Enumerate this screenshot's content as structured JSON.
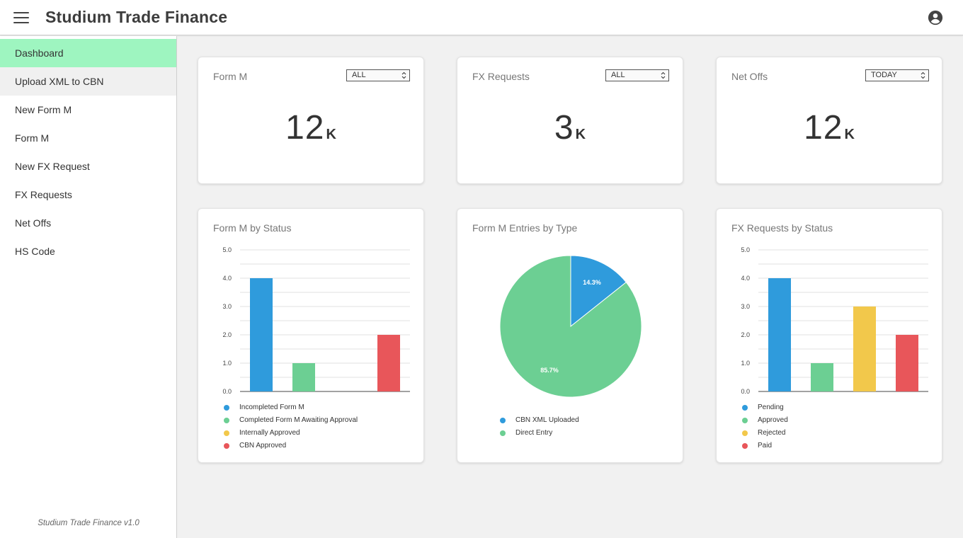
{
  "header": {
    "title": "Studium Trade Finance",
    "menu_icon": "hamburger-menu-icon",
    "account_icon": "account-circle-icon"
  },
  "sidebar": {
    "items": [
      {
        "label": "Dashboard",
        "state": "active"
      },
      {
        "label": "Upload XML to CBN",
        "state": "hover"
      },
      {
        "label": "New Form M",
        "state": ""
      },
      {
        "label": "Form M",
        "state": ""
      },
      {
        "label": "New FX Request",
        "state": ""
      },
      {
        "label": "FX Requests",
        "state": ""
      },
      {
        "label": "Net Offs",
        "state": ""
      },
      {
        "label": "HS Code",
        "state": ""
      }
    ],
    "version": "Studium Trade Finance v1.0"
  },
  "stats": [
    {
      "title": "Form M",
      "filter": "ALL",
      "value": "12",
      "unit": "K"
    },
    {
      "title": "FX Requests",
      "filter": "ALL",
      "value": "3",
      "unit": "K"
    },
    {
      "title": "Net Offs",
      "filter": "TODAY",
      "value": "12",
      "unit": "K"
    }
  ],
  "colors": {
    "blue": "#2f9bdc",
    "green": "#6ccf93",
    "yellow": "#f2c84b",
    "red": "#e8565a",
    "active_nav": "#9ef5c0"
  },
  "chart_data": [
    {
      "type": "bar",
      "title": "Form M by Status",
      "categories": [
        "Incompleted Form M",
        "Completed Form M Awaiting Approval",
        "Internally Approved",
        "CBN Approved"
      ],
      "values": [
        4,
        1,
        0,
        2
      ],
      "colors": [
        "#2f9bdc",
        "#6ccf93",
        "#f2c84b",
        "#e8565a"
      ],
      "ylim": [
        0,
        5
      ],
      "yticks": [
        "0.0",
        "1.0",
        "2.0",
        "3.0",
        "4.0",
        "5.0"
      ],
      "grid": true,
      "legend": "bottom"
    },
    {
      "type": "pie",
      "title": "Form M Entries by Type",
      "categories": [
        "CBN XML Uploaded",
        "Direct Entry"
      ],
      "values": [
        14.3,
        85.7
      ],
      "labels": [
        "14.3%",
        "85.7%"
      ],
      "colors": [
        "#2f9bdc",
        "#6ccf93"
      ],
      "legend": "bottom"
    },
    {
      "type": "bar",
      "title": "FX Requests by Status",
      "categories": [
        "Pending",
        "Approved",
        "Rejected",
        "Paid"
      ],
      "values": [
        4,
        1,
        3,
        2
      ],
      "colors": [
        "#2f9bdc",
        "#6ccf93",
        "#f2c84b",
        "#e8565a"
      ],
      "ylim": [
        0,
        5
      ],
      "yticks": [
        "0.0",
        "1.0",
        "2.0",
        "3.0",
        "4.0",
        "5.0"
      ],
      "grid": true,
      "legend": "bottom"
    }
  ]
}
